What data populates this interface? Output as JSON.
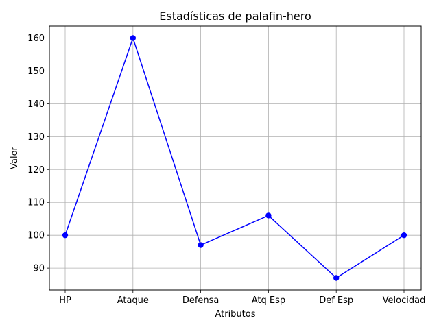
{
  "chart_data": {
    "type": "line",
    "title": "Estadísticas de palafin-hero",
    "xlabel": "Atributos",
    "ylabel": "Valor",
    "categories": [
      "HP",
      "Ataque",
      "Defensa",
      "Atq Esp",
      "Def Esp",
      "Velocidad"
    ],
    "series": [
      {
        "values": [
          100,
          160,
          97,
          106,
          87,
          100
        ],
        "color": "#0000ff",
        "marker": "circle"
      }
    ],
    "ylim": [
      83.35,
      163.65
    ],
    "yticks": [
      90,
      100,
      110,
      120,
      130,
      140,
      150,
      160
    ],
    "grid": true,
    "colors": {
      "line": "#0000ff",
      "grid": "#b0b0b0",
      "axis": "#000000"
    }
  }
}
